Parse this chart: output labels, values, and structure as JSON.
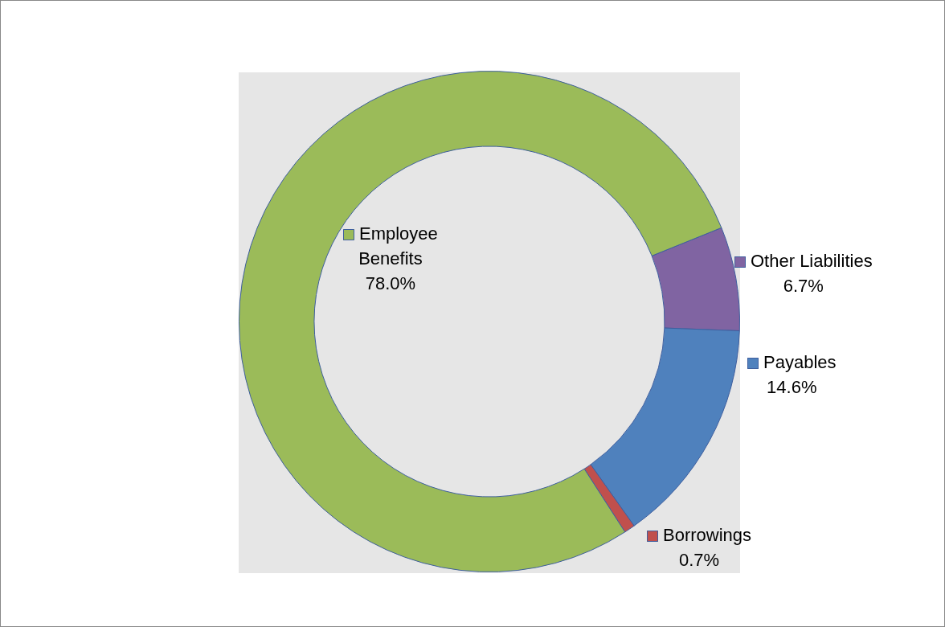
{
  "chart_data": {
    "type": "donut",
    "categories": [
      "Other Liabilities",
      "Payables",
      "Borrowings",
      "Employee Benefits"
    ],
    "values": [
      6.7,
      14.6,
      0.7,
      78.0
    ],
    "value_labels": [
      "6.7%",
      "14.6%",
      "0.7%",
      "78.0%"
    ],
    "colors": [
      "#8064a2",
      "#4f81bd",
      "#c0504d",
      "#9bbb59"
    ],
    "legend": "right"
  }
}
